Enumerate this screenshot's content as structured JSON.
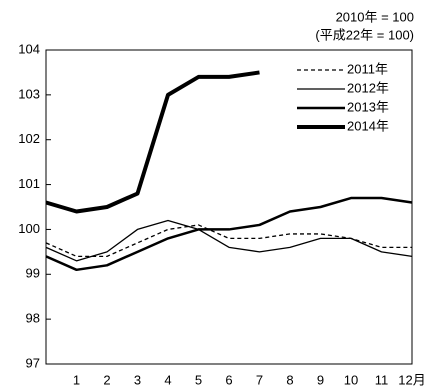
{
  "chart_data": {
    "type": "line",
    "note_lines": [
      "2010年 = 100",
      "(平成22年 = 100)"
    ],
    "categories": [
      null,
      "1",
      "2",
      "3",
      "4",
      "5",
      "6",
      "7",
      "8",
      "9",
      "10",
      "11",
      "12月"
    ],
    "series": [
      {
        "name": "2011年",
        "color": "#000000",
        "dash": "4 3",
        "width": 1.3,
        "values": [
          99.7,
          99.4,
          99.4,
          99.7,
          100.0,
          100.1,
          99.8,
          99.8,
          99.9,
          99.9,
          99.8,
          99.6,
          99.6
        ]
      },
      {
        "name": "2012年",
        "color": "#000000",
        "dash": "none",
        "width": 1.3,
        "values": [
          99.6,
          99.3,
          99.5,
          100.0,
          100.2,
          100.0,
          99.6,
          99.5,
          99.6,
          99.8,
          99.8,
          99.5,
          99.4
        ]
      },
      {
        "name": "2013年",
        "color": "#000000",
        "dash": "none",
        "width": 2.5,
        "values": [
          99.4,
          99.1,
          99.2,
          99.5,
          99.8,
          100.0,
          100.0,
          100.1,
          100.4,
          100.5,
          100.7,
          100.7,
          100.6
        ]
      },
      {
        "name": "2014年",
        "color": "#000000",
        "dash": "none",
        "width": 4,
        "values": [
          100.6,
          100.4,
          100.5,
          100.8,
          103.0,
          103.4,
          103.4,
          103.5,
          null,
          null,
          null,
          null,
          null
        ]
      }
    ],
    "ylim": [
      97,
      104
    ],
    "yticks": [
      97,
      98,
      99,
      100,
      101,
      102,
      103,
      104
    ]
  }
}
